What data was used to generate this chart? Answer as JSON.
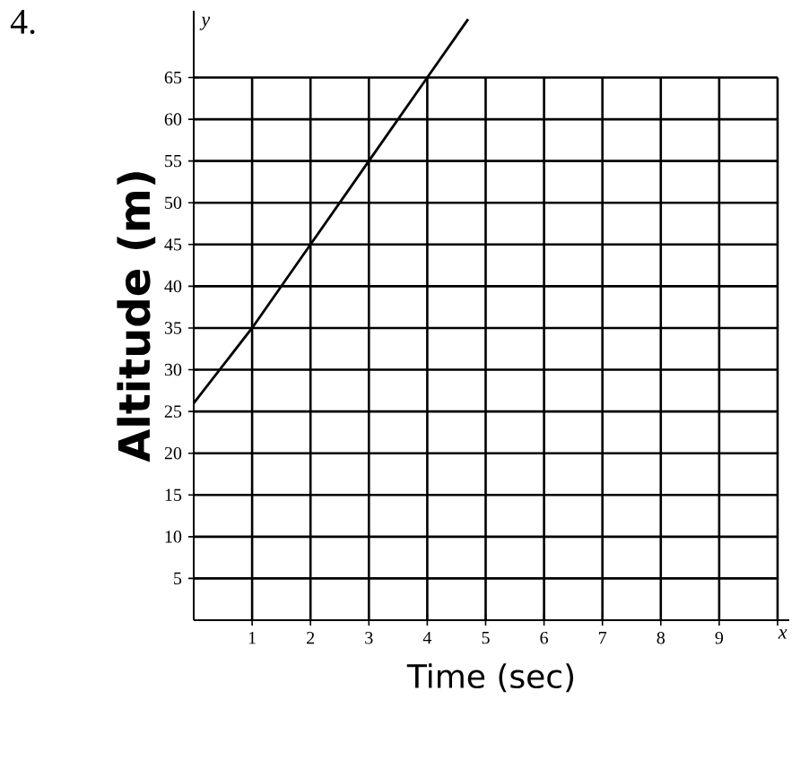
{
  "chart_data": {
    "type": "line",
    "title": "4.",
    "xlabel": "Time (sec)",
    "ylabel": "Altitude (m)",
    "annotations": [
      "y",
      "x"
    ],
    "x": [
      0,
      1,
      2,
      3,
      4,
      4.7
    ],
    "series": [
      {
        "color": "#000000",
        "values": [
          26,
          35,
          45,
          55,
          65,
          72
        ]
      }
    ],
    "xlim": [
      0,
      10.2
    ],
    "ylim": [
      0,
      73
    ],
    "xticks": [
      1,
      2,
      3,
      4,
      5,
      6,
      7,
      8,
      9,
      {
        "value": 10,
        "label": null
      }
    ],
    "yticks": [
      5,
      10,
      15,
      20,
      25,
      30,
      35,
      40,
      45,
      50,
      55,
      60,
      65
    ],
    "grid": true,
    "marker": "none",
    "line_style": "solid"
  }
}
